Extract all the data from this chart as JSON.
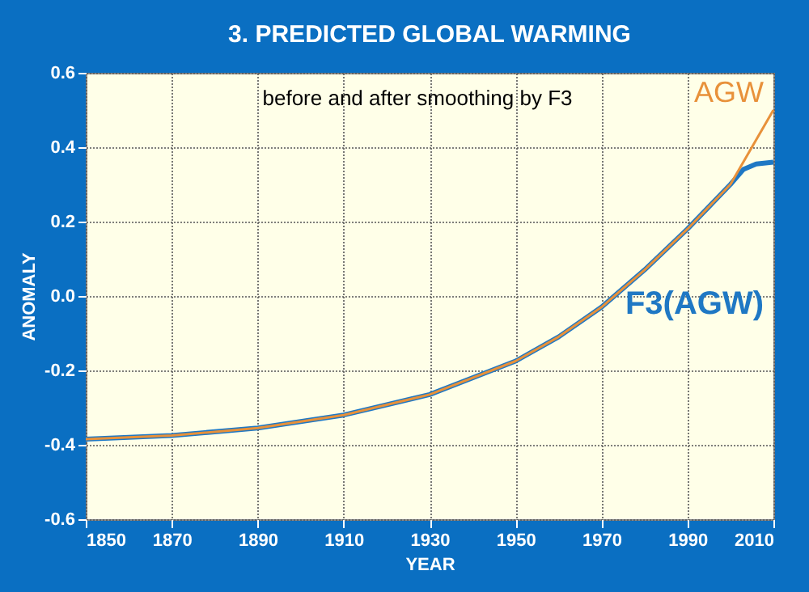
{
  "chart_data": {
    "type": "line",
    "title": "3. PREDICTED GLOBAL WARMING",
    "annotations": [
      "before and after smoothing by F3"
    ],
    "xlabel": "YEAR",
    "ylabel": "ANOMALY",
    "series": [
      {
        "name": "AGW",
        "color": "#e8913a",
        "x": [
          1850,
          1870,
          1890,
          1910,
          1930,
          1950,
          1960,
          1970,
          1980,
          1990,
          1995,
          2000,
          2005,
          2010
        ],
        "values": [
          -0.385,
          -0.375,
          -0.355,
          -0.32,
          -0.265,
          -0.175,
          -0.11,
          -0.03,
          0.07,
          0.18,
          0.24,
          0.3,
          0.4,
          0.5
        ]
      },
      {
        "name": "F3(AGW)",
        "color": "#1f78c4",
        "x": [
          1850,
          1870,
          1890,
          1910,
          1930,
          1950,
          1960,
          1970,
          1980,
          1990,
          1995,
          2000,
          2003,
          2006,
          2010
        ],
        "values": [
          -0.385,
          -0.375,
          -0.355,
          -0.32,
          -0.265,
          -0.175,
          -0.11,
          -0.03,
          0.07,
          0.18,
          0.24,
          0.3,
          0.34,
          0.355,
          0.36
        ]
      }
    ],
    "xlim": [
      1850,
      2010
    ],
    "xticks": [
      1850,
      1870,
      1890,
      1910,
      1930,
      1950,
      1970,
      1990,
      2010
    ],
    "ylim": [
      -0.6,
      0.6
    ],
    "yticks": [
      {
        "value": -0.6,
        "label": "-0.6"
      },
      {
        "value": -0.4,
        "label": "-0.4"
      },
      {
        "value": -0.2,
        "label": "-0.2"
      },
      {
        "value": 0,
        "label": "0.0"
      },
      {
        "value": 0.2,
        "label": "0.2"
      },
      {
        "value": 0.4,
        "label": "0.4"
      },
      {
        "value": 0.6,
        "label": "0.6"
      }
    ],
    "grid": true,
    "legend": false,
    "line_style": "solid",
    "marker": "none"
  }
}
